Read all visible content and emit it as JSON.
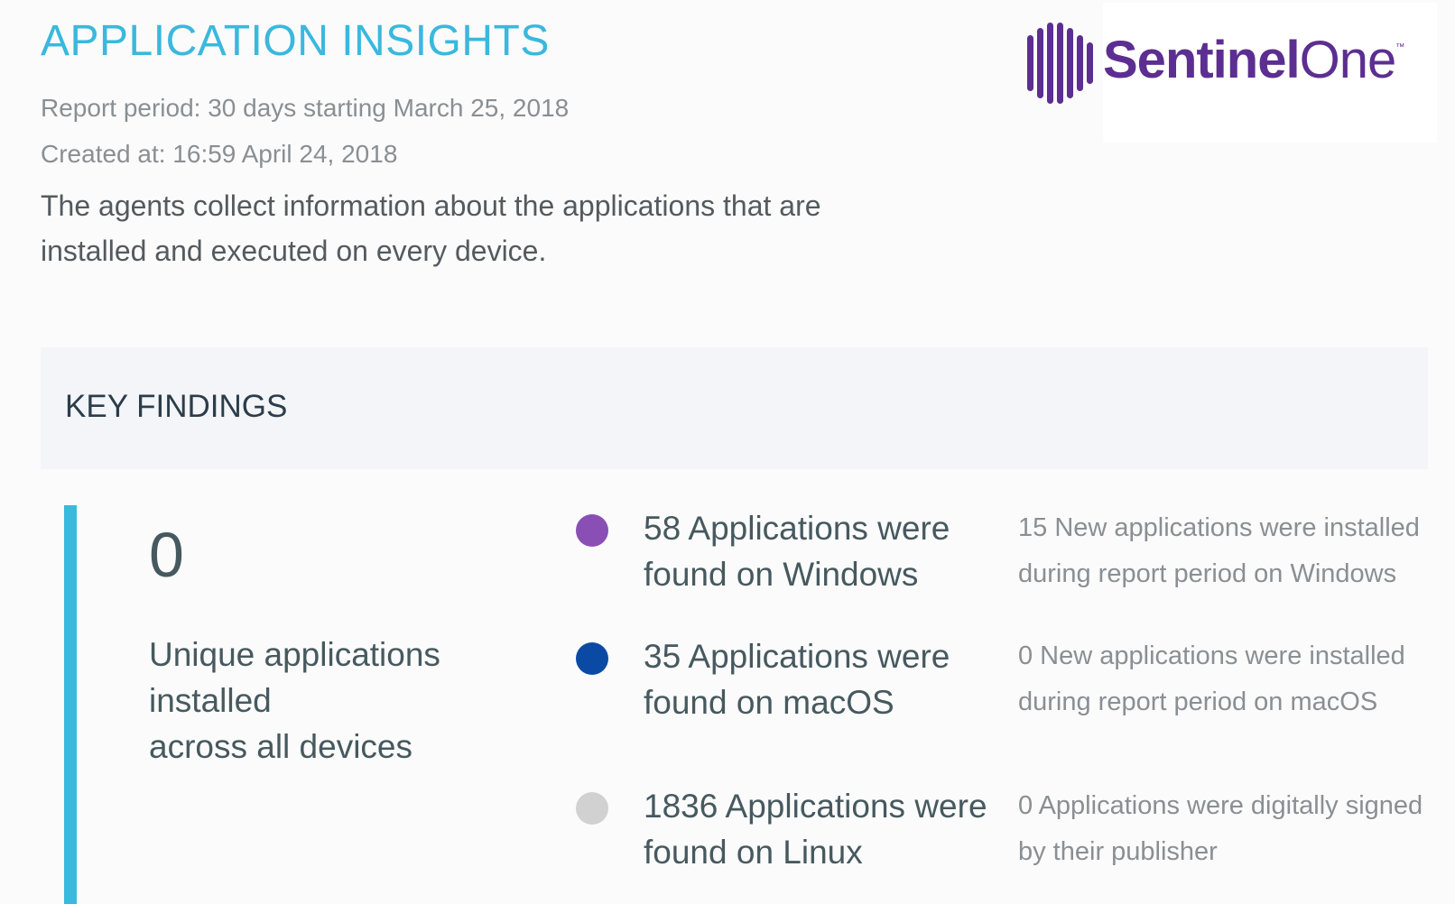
{
  "header": {
    "title": "APPLICATION INSIGHTS",
    "report_period": "Report period: 30 days starting March 25, 2018",
    "created_at": "Created at: 16:59 April 24, 2018",
    "intro": "The agents collect information about the applications that are installed and executed on every device."
  },
  "logo": {
    "text_bold": "Sentinel",
    "text_light": "One",
    "trademark": "™",
    "color": "#5c2e91"
  },
  "key_findings": {
    "title": "KEY FINDINGS",
    "accent_color": "#3ab8dd",
    "unique_count": "0",
    "unique_label_lines": [
      "Unique applications",
      "installed",
      "across all devices"
    ],
    "items": [
      {
        "dot_color": "#8a4fb5",
        "main_lines": [
          "58 Applications were",
          "found on Windows"
        ],
        "note_lines": [
          "15 New applications were installed",
          "during report period on Windows"
        ]
      },
      {
        "dot_color": "#0a4aa4",
        "main_lines": [
          "35 Applications were",
          "found on macOS"
        ],
        "note_lines": [
          "0 New applications were installed",
          "during report period on macOS"
        ]
      },
      {
        "dot_color": "#d1d1d1",
        "main_lines": [
          "1836 Applications were",
          "found on Linux"
        ],
        "note_lines": [
          "0 Applications were digitally signed",
          "by their publisher"
        ]
      }
    ]
  }
}
